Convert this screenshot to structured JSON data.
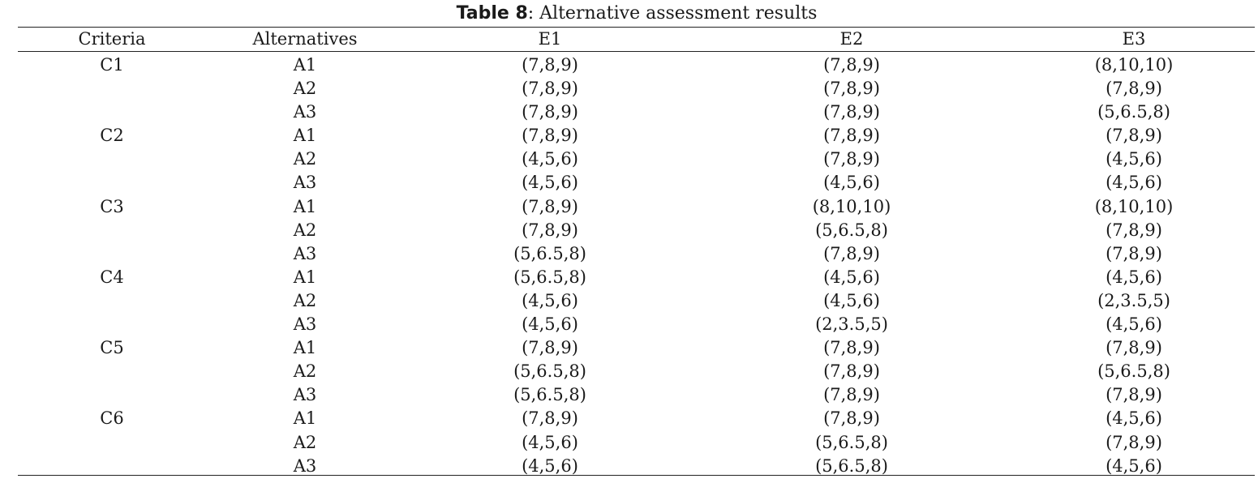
{
  "caption": {
    "label": "Table 8",
    "text": ": Alternative assessment results"
  },
  "headers": {
    "criteria": "Criteria",
    "alternatives": "Alternatives",
    "e1": "E1",
    "e2": "E2",
    "e3": "E3"
  },
  "rows": [
    {
      "criteria": "C1",
      "alt": "A1",
      "e1": "(7,8,9)",
      "e2": "(7,8,9)",
      "e3": "(8,10,10)"
    },
    {
      "criteria": "",
      "alt": "A2",
      "e1": "(7,8,9)",
      "e2": "(7,8,9)",
      "e3": "(7,8,9)"
    },
    {
      "criteria": "",
      "alt": "A3",
      "e1": "(7,8,9)",
      "e2": "(7,8,9)",
      "e3": "(5,6.5,8)"
    },
    {
      "criteria": "C2",
      "alt": "A1",
      "e1": "(7,8,9)",
      "e2": "(7,8,9)",
      "e3": "(7,8,9)"
    },
    {
      "criteria": "",
      "alt": "A2",
      "e1": "(4,5,6)",
      "e2": "(7,8,9)",
      "e3": "(4,5,6)"
    },
    {
      "criteria": "",
      "alt": "A3",
      "e1": "(4,5,6)",
      "e2": "(4,5,6)",
      "e3": "(4,5,6)"
    },
    {
      "criteria": "C3",
      "alt": "A1",
      "e1": "(7,8,9)",
      "e2": "(8,10,10)",
      "e3": "(8,10,10)"
    },
    {
      "criteria": "",
      "alt": "A2",
      "e1": "(7,8,9)",
      "e2": "(5,6.5,8)",
      "e3": "(7,8,9)"
    },
    {
      "criteria": "",
      "alt": "A3",
      "e1": "(5,6.5,8)",
      "e2": "(7,8,9)",
      "e3": "(7,8,9)"
    },
    {
      "criteria": "C4",
      "alt": "A1",
      "e1": "(5,6.5,8)",
      "e2": "(4,5,6)",
      "e3": "(4,5,6)"
    },
    {
      "criteria": "",
      "alt": "A2",
      "e1": "(4,5,6)",
      "e2": "(4,5,6)",
      "e3": "(2,3.5,5)"
    },
    {
      "criteria": "",
      "alt": "A3",
      "e1": "(4,5,6)",
      "e2": "(2,3.5,5)",
      "e3": "(4,5,6)"
    },
    {
      "criteria": "C5",
      "alt": "A1",
      "e1": "(7,8,9)",
      "e2": "(7,8,9)",
      "e3": "(7,8,9)"
    },
    {
      "criteria": "",
      "alt": "A2",
      "e1": "(5,6.5,8)",
      "e2": "(7,8,9)",
      "e3": "(5,6.5,8)"
    },
    {
      "criteria": "",
      "alt": "A3",
      "e1": "(5,6.5,8)",
      "e2": "(7,8,9)",
      "e3": "(7,8,9)"
    },
    {
      "criteria": "C6",
      "alt": "A1",
      "e1": "(7,8,9)",
      "e2": "(7,8,9)",
      "e3": "(4,5,6)"
    },
    {
      "criteria": "",
      "alt": "A2",
      "e1": "(4,5,6)",
      "e2": "(5,6.5,8)",
      "e3": "(7,8,9)"
    },
    {
      "criteria": "",
      "alt": "A3",
      "e1": "(4,5,6)",
      "e2": "(5,6.5,8)",
      "e3": "(4,5,6)"
    }
  ]
}
